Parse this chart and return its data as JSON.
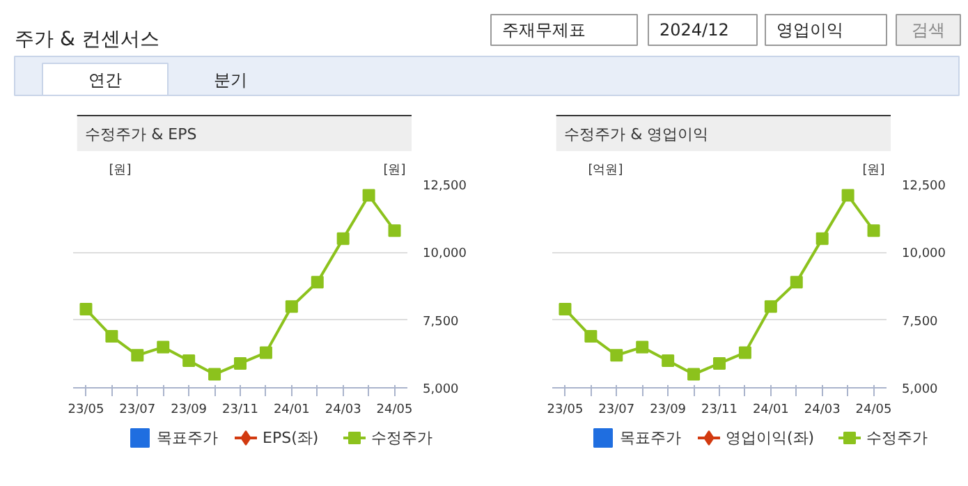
{
  "chart_data": [
    {
      "type": "other",
      "title": "주가 & 컨센서스",
      "annotations": [
        "주재무제표",
        "2024/12",
        "영업이익",
        "검색",
        "연간",
        "분기"
      ]
    },
    {
      "type": "line",
      "title": "수정주가 & EPS",
      "ylabel": "[원]",
      "y2label": "[원]",
      "categories": [
        "23/05",
        null,
        "23/07",
        null,
        "23/09",
        null,
        "23/11",
        null,
        "24/01",
        null,
        "24/03",
        null,
        "24/05"
      ],
      "y2lim": [
        5000,
        12500
      ],
      "y2ticks": [
        {
          "value": 5000,
          "label": "5,000"
        },
        {
          "value": 7500,
          "label": "7,500"
        },
        {
          "value": 10000,
          "label": "10,000"
        },
        {
          "value": 12500,
          "label": "12,500"
        }
      ],
      "grid": "y",
      "legend": "bottom",
      "series": [
        {
          "name": "목표주가",
          "type": "scatter",
          "marker": "square",
          "color": "#1f6ee0",
          "values": [
            null,
            null,
            null,
            null,
            null,
            null,
            null,
            null,
            null,
            null,
            null,
            null,
            null
          ]
        },
        {
          "name": "EPS(좌)",
          "type": "line",
          "marker": "diamond",
          "color": "#d23a10",
          "values": [
            null,
            null,
            null,
            null,
            null,
            null,
            null,
            null,
            null,
            null,
            null,
            null,
            null
          ]
        },
        {
          "name": "수정주가",
          "type": "line",
          "marker": "square",
          "axis": "y2",
          "color": "#8cc21d",
          "values": [
            7900,
            6900,
            6200,
            6500,
            6000,
            5500,
            5900,
            6300,
            8000,
            8900,
            10500,
            12100,
            10800
          ]
        }
      ]
    },
    {
      "type": "line",
      "title": "수정주가 & 영업이익",
      "ylabel": "[억원]",
      "y2label": "[원]",
      "categories": [
        "23/05",
        null,
        "23/07",
        null,
        "23/09",
        null,
        "23/11",
        null,
        "24/01",
        null,
        "24/03",
        null,
        "24/05"
      ],
      "y2lim": [
        5000,
        12500
      ],
      "y2ticks": [
        {
          "value": 5000,
          "label": "5,000"
        },
        {
          "value": 7500,
          "label": "7,500"
        },
        {
          "value": 10000,
          "label": "10,000"
        },
        {
          "value": 12500,
          "label": "12,500"
        }
      ],
      "grid": "y",
      "legend": "bottom",
      "series": [
        {
          "name": "목표주가",
          "type": "scatter",
          "marker": "square",
          "color": "#1f6ee0",
          "values": [
            null,
            null,
            null,
            null,
            null,
            null,
            null,
            null,
            null,
            null,
            null,
            null,
            null
          ]
        },
        {
          "name": "영업이익(좌)",
          "type": "line",
          "marker": "diamond",
          "color": "#d23a10",
          "values": [
            null,
            null,
            null,
            null,
            null,
            null,
            null,
            null,
            null,
            null,
            null,
            null,
            null
          ]
        },
        {
          "name": "수정주가",
          "type": "line",
          "marker": "square",
          "axis": "y2",
          "color": "#8cc21d",
          "values": [
            7900,
            6900,
            6200,
            6500,
            6000,
            5500,
            5900,
            6300,
            8000,
            8900,
            10500,
            12100,
            10800
          ]
        }
      ]
    }
  ]
}
